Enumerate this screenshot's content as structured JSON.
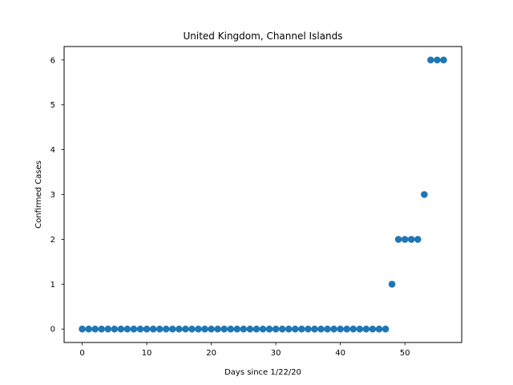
{
  "chart_data": {
    "type": "scatter",
    "title": "United Kingdom, Channel Islands",
    "xlabel": "Days since 1/22/20",
    "ylabel": "Confirmed Cases",
    "xlim": [
      -2.8,
      58.8
    ],
    "ylim": [
      -0.3,
      6.3
    ],
    "xticks": [
      0,
      10,
      20,
      30,
      40,
      50
    ],
    "yticks": [
      0,
      1,
      2,
      3,
      4,
      5,
      6
    ],
    "grid": false,
    "marker_color": "#1f77b4",
    "series": [
      {
        "x": [
          0,
          1,
          2,
          3,
          4,
          5,
          6,
          7,
          8,
          9,
          10,
          11,
          12,
          13,
          14,
          15,
          16,
          17,
          18,
          19,
          20,
          21,
          22,
          23,
          24,
          25,
          26,
          27,
          28,
          29,
          30,
          31,
          32,
          33,
          34,
          35,
          36,
          37,
          38,
          39,
          40,
          41,
          42,
          43,
          44,
          45,
          46,
          47,
          48,
          49,
          50,
          51,
          52,
          53,
          54,
          55,
          56
        ],
        "y": [
          0,
          0,
          0,
          0,
          0,
          0,
          0,
          0,
          0,
          0,
          0,
          0,
          0,
          0,
          0,
          0,
          0,
          0,
          0,
          0,
          0,
          0,
          0,
          0,
          0,
          0,
          0,
          0,
          0,
          0,
          0,
          0,
          0,
          0,
          0,
          0,
          0,
          0,
          0,
          0,
          0,
          0,
          0,
          0,
          0,
          0,
          0,
          0,
          1,
          2,
          2,
          2,
          2,
          3,
          6,
          6,
          6
        ]
      }
    ]
  }
}
